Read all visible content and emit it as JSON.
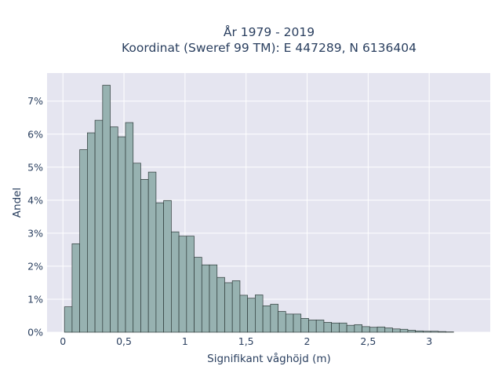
{
  "chart_data": {
    "type": "bar",
    "title_line1": "År 1979 - 2019",
    "title_line2": "Koordinat (Sweref 99 TM): E 447289, N 6136404",
    "xlabel": "Signifikant våghöjd (m)",
    "ylabel": "Andel",
    "xlim": [
      -0.13,
      3.5
    ],
    "ylim": [
      0,
      0.0785
    ],
    "x_ticks": [
      0,
      0.5,
      1,
      1.5,
      2,
      2.5,
      3
    ],
    "x_tick_labels": [
      "0",
      "0,5",
      "1",
      "1,5",
      "2",
      "2,5",
      "3"
    ],
    "y_ticks": [
      0,
      0.01,
      0.02,
      0.03,
      0.04,
      0.05,
      0.06,
      0.07
    ],
    "y_tick_labels": [
      "0%",
      "1%",
      "2%",
      "3%",
      "4%",
      "5%",
      "6%",
      "7%"
    ],
    "bin_width": 0.0625,
    "bin_starts": [
      0.0125,
      0.075,
      0.1375,
      0.2,
      0.2625,
      0.325,
      0.3875,
      0.45,
      0.5125,
      0.575,
      0.6375,
      0.7,
      0.7625,
      0.825,
      0.8875,
      0.95,
      1.0125,
      1.075,
      1.1375,
      1.2,
      1.2625,
      1.325,
      1.3875,
      1.45,
      1.5125,
      1.575,
      1.6375,
      1.7,
      1.7625,
      1.825,
      1.8875,
      1.95,
      2.0125,
      2.075,
      2.1375,
      2.2,
      2.2625,
      2.325,
      2.3875,
      2.45,
      2.5125,
      2.575,
      2.6375,
      2.7,
      2.7625,
      2.825,
      2.8875,
      2.95,
      3.0125,
      3.075,
      3.1375
    ],
    "values": [
      0.0077,
      0.0268,
      0.0553,
      0.0604,
      0.0642,
      0.0748,
      0.0622,
      0.0592,
      0.0635,
      0.0512,
      0.0463,
      0.0485,
      0.0392,
      0.0399,
      0.0304,
      0.0291,
      0.0291,
      0.0227,
      0.0204,
      0.0204,
      0.0166,
      0.015,
      0.0156,
      0.0112,
      0.0103,
      0.0113,
      0.008,
      0.0085,
      0.0063,
      0.0055,
      0.0055,
      0.0042,
      0.0037,
      0.0037,
      0.003,
      0.0028,
      0.0028,
      0.0021,
      0.0023,
      0.0017,
      0.0015,
      0.0016,
      0.0013,
      0.001,
      0.0009,
      0.0006,
      0.0004,
      0.0003,
      0.0003,
      0.0002,
      0.0001
    ],
    "bar_color": "#97b2b1",
    "bar_stroke": "#2f3b3a",
    "plot_bg": "#e5e5f0",
    "grid": true,
    "grid_color": "#ffffff"
  }
}
